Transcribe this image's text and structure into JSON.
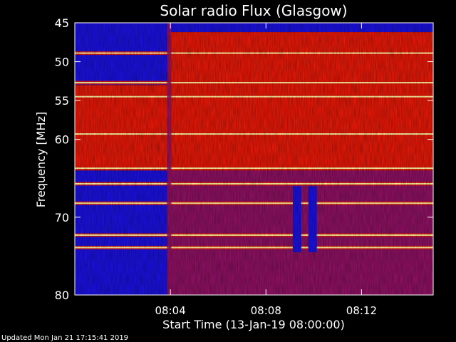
{
  "chart_data": {
    "type": "heatmap",
    "title": "Solar radio Flux (Glasgow)",
    "xlabel": "Start Time (13-Jan-19 08:00:00)",
    "ylabel": "Frequency [MHz]",
    "x_unit": "minutes after 08:00:00",
    "xlim": [
      0,
      15
    ],
    "ylim": [
      45,
      80
    ],
    "y_inverted": true,
    "x_ticks": [
      {
        "value": 4,
        "label": "08:04"
      },
      {
        "value": 8,
        "label": "08:08"
      },
      {
        "value": 12,
        "label": "08:12"
      }
    ],
    "y_ticks": [
      {
        "value": 45,
        "label": "45"
      },
      {
        "value": 50,
        "label": "50"
      },
      {
        "value": 55,
        "label": "55"
      },
      {
        "value": 60,
        "label": "60"
      },
      {
        "value": 70,
        "label": "70"
      },
      {
        "value": 80,
        "label": "80"
      }
    ],
    "background_regions": [
      {
        "x": [
          0,
          3.9
        ],
        "y": [
          45,
          53
        ],
        "level": "low"
      },
      {
        "x": [
          0,
          3.9
        ],
        "y": [
          53,
          64
        ],
        "level": "high"
      },
      {
        "x": [
          0,
          3.9
        ],
        "y": [
          64,
          80
        ],
        "level": "low"
      },
      {
        "x": [
          3.9,
          15
        ],
        "y": [
          45,
          46.2
        ],
        "level": "low"
      },
      {
        "x": [
          3.9,
          15
        ],
        "y": [
          46.2,
          64
        ],
        "level": "high"
      },
      {
        "x": [
          3.9,
          15
        ],
        "y": [
          64,
          80
        ],
        "level": "medium"
      }
    ],
    "horizontal_bands_mhz": [
      48.9,
      52.7,
      54.5,
      59.3,
      63.7,
      65.7,
      68.2,
      72.3,
      73.9
    ],
    "vertical_features": [
      {
        "x": 3.95,
        "y": [
          45,
          80
        ],
        "note": "transition"
      },
      {
        "x": 9.3,
        "y": [
          66,
          74.5
        ],
        "level": "low"
      },
      {
        "x": 9.95,
        "y": [
          66,
          74.5
        ],
        "level": "low"
      }
    ],
    "colors": {
      "low": "#1a10d8",
      "medium": "#8a1060",
      "high": "#e01808",
      "peak": "#fff2a0"
    }
  },
  "footer": {
    "updated": "Updated Mon Jan 21 17:15:41 2019"
  }
}
